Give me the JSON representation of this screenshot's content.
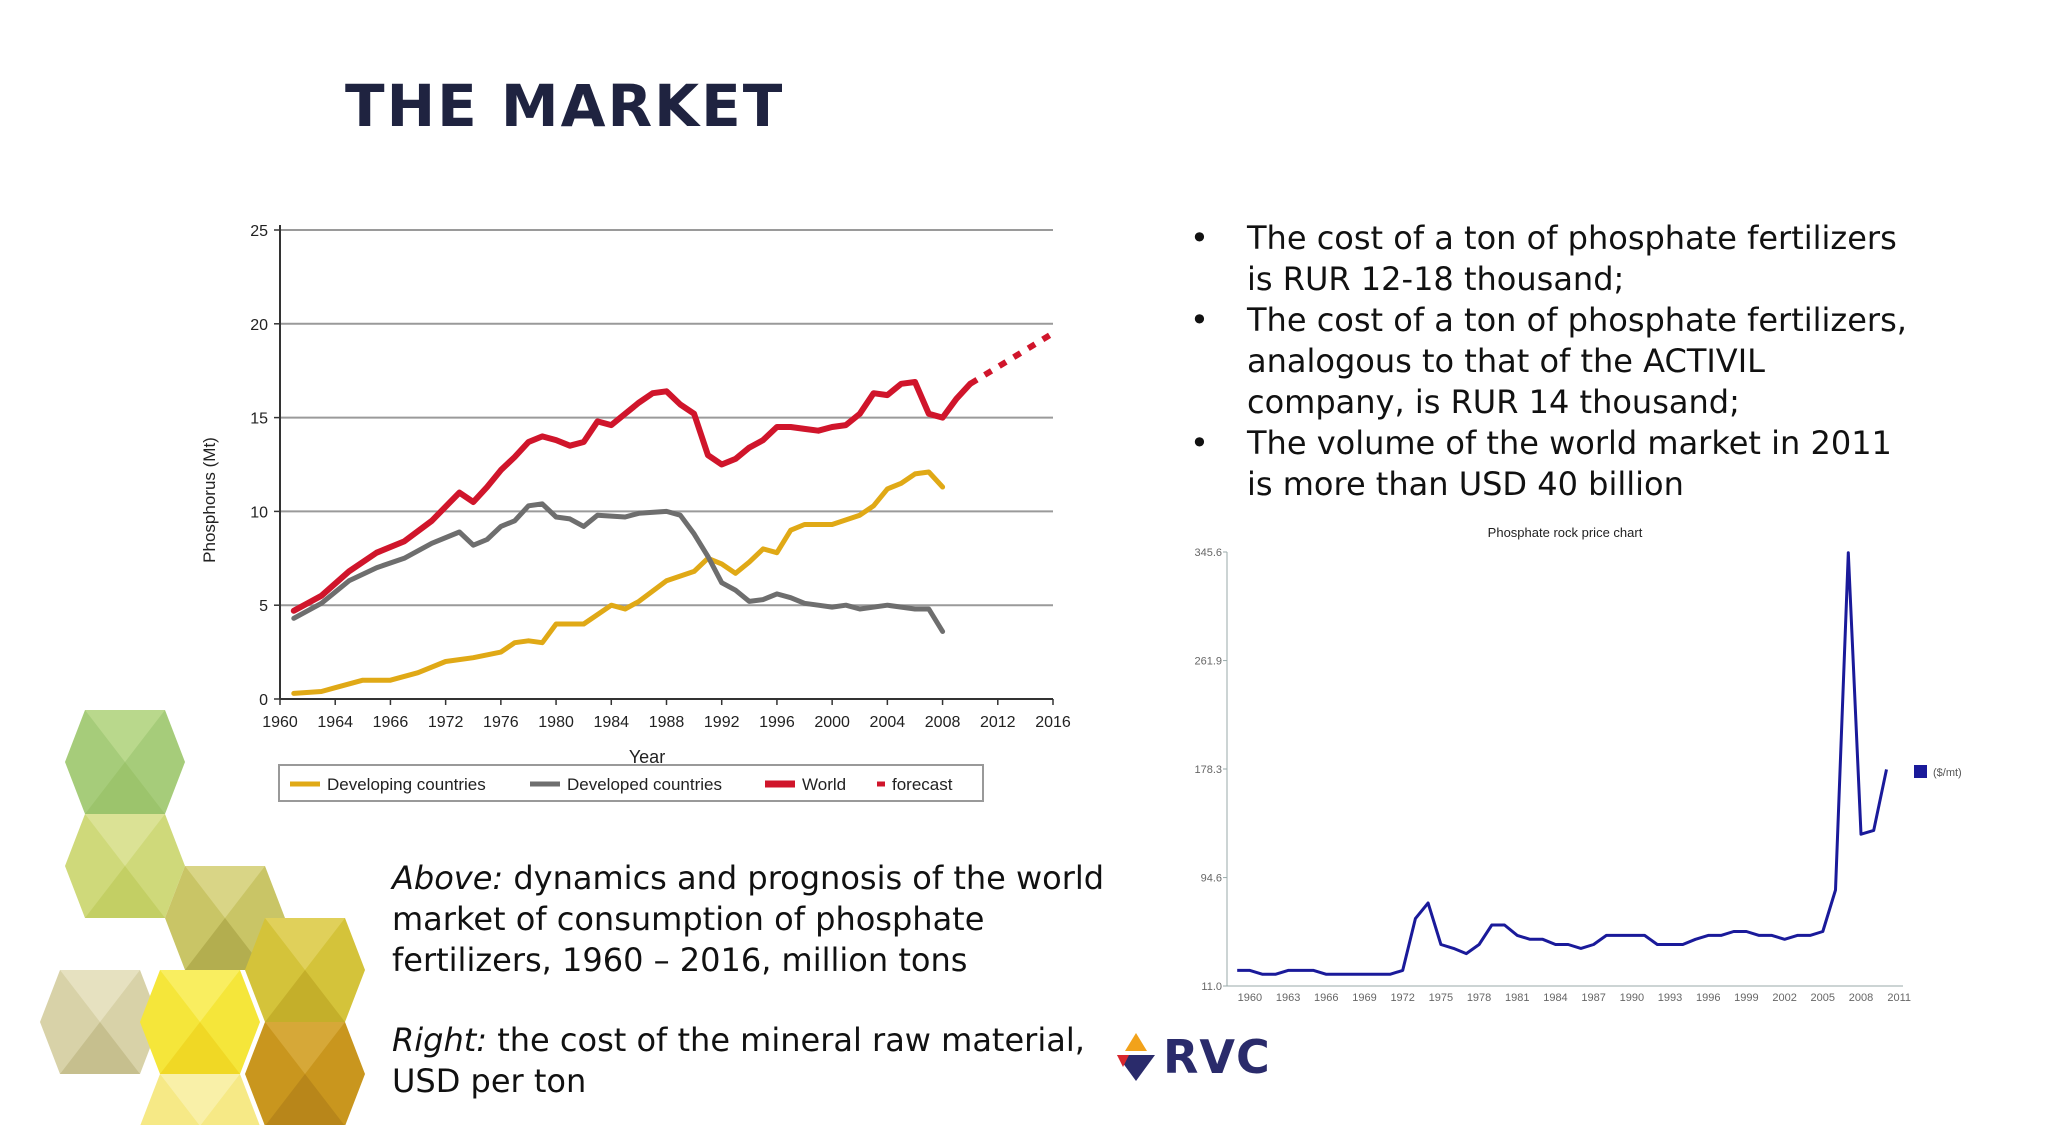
{
  "page": {
    "title": "THE MARKET"
  },
  "bullets": [
    "The cost of a ton of phosphate fertilizers is RUR 12-18 thousand;",
    "The cost of a ton of phosphate fertilizers, analogous to that of the ACTIVIL company, is RUR 14 thousand;",
    "The volume of the world market in 2011 is more than USD 40 billion"
  ],
  "captions": {
    "above_lead": "Above:",
    "above_text": " dynamics and prognosis of the world market of consumption of phosphate fertilizers, 1960 – 2016, million tons",
    "right_lead": "Right:",
    "right_text": " the cost of the mineral raw material, USD per ton"
  },
  "logo": {
    "text": "RVC"
  },
  "decor": {
    "hexagon_logo_colors": [
      "#f2a21a",
      "#2a2b6b",
      "#d8262d"
    ]
  },
  "chart_data": [
    {
      "type": "line",
      "title": "",
      "xlabel": "Year",
      "ylabel": "Phosphorus (Mt)",
      "xlim": [
        1960,
        2016
      ],
      "ylim": [
        0,
        25
      ],
      "xticks": [
        "1960",
        "1964",
        "1966",
        "1972",
        "1976",
        "1980",
        "1984",
        "1988",
        "1992",
        "1996",
        "2000",
        "2004",
        "2008",
        "2012",
        "2016"
      ],
      "yticks": [
        "0",
        "5",
        "10",
        "15",
        "20",
        "25"
      ],
      "grid": true,
      "legend": "bottom",
      "series": [
        {
          "name": "Developing countries",
          "color": "#e0a916",
          "style": "solid",
          "points": [
            [
              1961,
              0.3
            ],
            [
              1963,
              0.4
            ],
            [
              1964,
              0.6
            ],
            [
              1966,
              1.0
            ],
            [
              1968,
              1.0
            ],
            [
              1970,
              1.4
            ],
            [
              1972,
              2.0
            ],
            [
              1974,
              2.2
            ],
            [
              1976,
              2.5
            ],
            [
              1977,
              3.0
            ],
            [
              1978,
              3.1
            ],
            [
              1979,
              3.0
            ],
            [
              1980,
              4.0
            ],
            [
              1982,
              4.0
            ],
            [
              1984,
              5.0
            ],
            [
              1985,
              4.8
            ],
            [
              1986,
              5.2
            ],
            [
              1988,
              6.3
            ],
            [
              1990,
              6.8
            ],
            [
              1991,
              7.5
            ],
            [
              1992,
              7.2
            ],
            [
              1993,
              6.7
            ],
            [
              1994,
              7.3
            ],
            [
              1995,
              8.0
            ],
            [
              1996,
              7.8
            ],
            [
              1997,
              9.0
            ],
            [
              1998,
              9.3
            ],
            [
              2000,
              9.3
            ],
            [
              2002,
              9.8
            ],
            [
              2003,
              10.3
            ],
            [
              2004,
              11.2
            ],
            [
              2005,
              11.5
            ],
            [
              2006,
              12.0
            ],
            [
              2007,
              12.1
            ],
            [
              2008,
              11.3
            ]
          ]
        },
        {
          "name": "Developed countries",
          "color": "#6e6e6e",
          "style": "solid",
          "points": [
            [
              1961,
              4.3
            ],
            [
              1963,
              5.1
            ],
            [
              1965,
              6.3
            ],
            [
              1967,
              7.0
            ],
            [
              1969,
              7.5
            ],
            [
              1971,
              8.3
            ],
            [
              1973,
              8.9
            ],
            [
              1974,
              8.2
            ],
            [
              1975,
              8.5
            ],
            [
              1976,
              9.2
            ],
            [
              1977,
              9.5
            ],
            [
              1978,
              10.3
            ],
            [
              1979,
              10.4
            ],
            [
              1980,
              9.7
            ],
            [
              1981,
              9.6
            ],
            [
              1982,
              9.2
            ],
            [
              1983,
              9.8
            ],
            [
              1985,
              9.7
            ],
            [
              1986,
              9.9
            ],
            [
              1988,
              10.0
            ],
            [
              1989,
              9.8
            ],
            [
              1990,
              8.8
            ],
            [
              1991,
              7.6
            ],
            [
              1992,
              6.2
            ],
            [
              1993,
              5.8
            ],
            [
              1994,
              5.2
            ],
            [
              1995,
              5.3
            ],
            [
              1996,
              5.6
            ],
            [
              1997,
              5.4
            ],
            [
              1998,
              5.1
            ],
            [
              1999,
              5.0
            ],
            [
              2000,
              4.9
            ],
            [
              2001,
              5.0
            ],
            [
              2002,
              4.8
            ],
            [
              2004,
              5.0
            ],
            [
              2006,
              4.8
            ],
            [
              2007,
              4.8
            ],
            [
              2008,
              3.6
            ]
          ]
        },
        {
          "name": "World",
          "color": "#d0152b",
          "style": "solid",
          "points": [
            [
              1961,
              4.7
            ],
            [
              1963,
              5.5
            ],
            [
              1965,
              6.8
            ],
            [
              1967,
              7.8
            ],
            [
              1969,
              8.4
            ],
            [
              1971,
              9.5
            ],
            [
              1973,
              11.0
            ],
            [
              1974,
              10.5
            ],
            [
              1975,
              11.3
            ],
            [
              1976,
              12.2
            ],
            [
              1977,
              12.9
            ],
            [
              1978,
              13.7
            ],
            [
              1979,
              14.0
            ],
            [
              1980,
              13.8
            ],
            [
              1981,
              13.5
            ],
            [
              1982,
              13.7
            ],
            [
              1983,
              14.8
            ],
            [
              1984,
              14.6
            ],
            [
              1985,
              15.2
            ],
            [
              1986,
              15.8
            ],
            [
              1987,
              16.3
            ],
            [
              1988,
              16.4
            ],
            [
              1989,
              15.7
            ],
            [
              1990,
              15.2
            ],
            [
              1991,
              13.0
            ],
            [
              1992,
              12.5
            ],
            [
              1993,
              12.8
            ],
            [
              1994,
              13.4
            ],
            [
              1995,
              13.8
            ],
            [
              1996,
              14.5
            ],
            [
              1997,
              14.5
            ],
            [
              1998,
              14.4
            ],
            [
              1999,
              14.3
            ],
            [
              2000,
              14.5
            ],
            [
              2001,
              14.6
            ],
            [
              2002,
              15.2
            ],
            [
              2003,
              16.3
            ],
            [
              2004,
              16.2
            ],
            [
              2005,
              16.8
            ],
            [
              2006,
              16.9
            ],
            [
              2007,
              15.2
            ],
            [
              2008,
              15.0
            ],
            [
              2009,
              16.0
            ],
            [
              2010,
              16.8
            ]
          ]
        },
        {
          "name": "forecast",
          "color": "#d0152b",
          "style": "dotted",
          "points": [
            [
              2010,
              16.8
            ],
            [
              2016,
              19.5
            ]
          ]
        }
      ]
    },
    {
      "type": "line",
      "title": "Phosphate rock price chart",
      "xlabel": "",
      "ylabel": "",
      "ylim": [
        11.0,
        345.6
      ],
      "yticks": [
        "11.0",
        "94.6",
        "178.3",
        "261.9",
        "345.6"
      ],
      "xticks": [
        "1960",
        "1963",
        "1966",
        "1969",
        "1972",
        "1975",
        "1978",
        "1981",
        "1984",
        "1987",
        "1990",
        "1993",
        "1996",
        "1999",
        "2002",
        "2005",
        "2008",
        "2011"
      ],
      "grid": false,
      "legend": "right",
      "series": [
        {
          "name": "($/mt)",
          "color": "#1a1a9a",
          "points": [
            [
              1959,
              23
            ],
            [
              1960,
              23
            ],
            [
              1961,
              20
            ],
            [
              1962,
              20
            ],
            [
              1963,
              23
            ],
            [
              1964,
              23
            ],
            [
              1965,
              23
            ],
            [
              1966,
              20
            ],
            [
              1967,
              20
            ],
            [
              1968,
              20
            ],
            [
              1969,
              20
            ],
            [
              1970,
              20
            ],
            [
              1971,
              20
            ],
            [
              1972,
              23
            ],
            [
              1973,
              63
            ],
            [
              1974,
              75
            ],
            [
              1975,
              43
            ],
            [
              1976,
              40
            ],
            [
              1977,
              36
            ],
            [
              1978,
              43
            ],
            [
              1979,
              58
            ],
            [
              1980,
              58
            ],
            [
              1981,
              50
            ],
            [
              1982,
              47
            ],
            [
              1983,
              47
            ],
            [
              1984,
              43
            ],
            [
              1985,
              43
            ],
            [
              1986,
              40
            ],
            [
              1987,
              43
            ],
            [
              1988,
              50
            ],
            [
              1989,
              50
            ],
            [
              1990,
              50
            ],
            [
              1991,
              50
            ],
            [
              1992,
              43
            ],
            [
              1993,
              43
            ],
            [
              1994,
              43
            ],
            [
              1995,
              47
            ],
            [
              1996,
              50
            ],
            [
              1997,
              50
            ],
            [
              1998,
              53
            ],
            [
              1999,
              53
            ],
            [
              2000,
              50
            ],
            [
              2001,
              50
            ],
            [
              2002,
              47
            ],
            [
              2003,
              50
            ],
            [
              2004,
              50
            ],
            [
              2005,
              53
            ],
            [
              2006,
              85
            ],
            [
              2007,
              345
            ],
            [
              2008,
              128
            ],
            [
              2009,
              131
            ],
            [
              2010,
              178
            ]
          ]
        }
      ]
    }
  ]
}
